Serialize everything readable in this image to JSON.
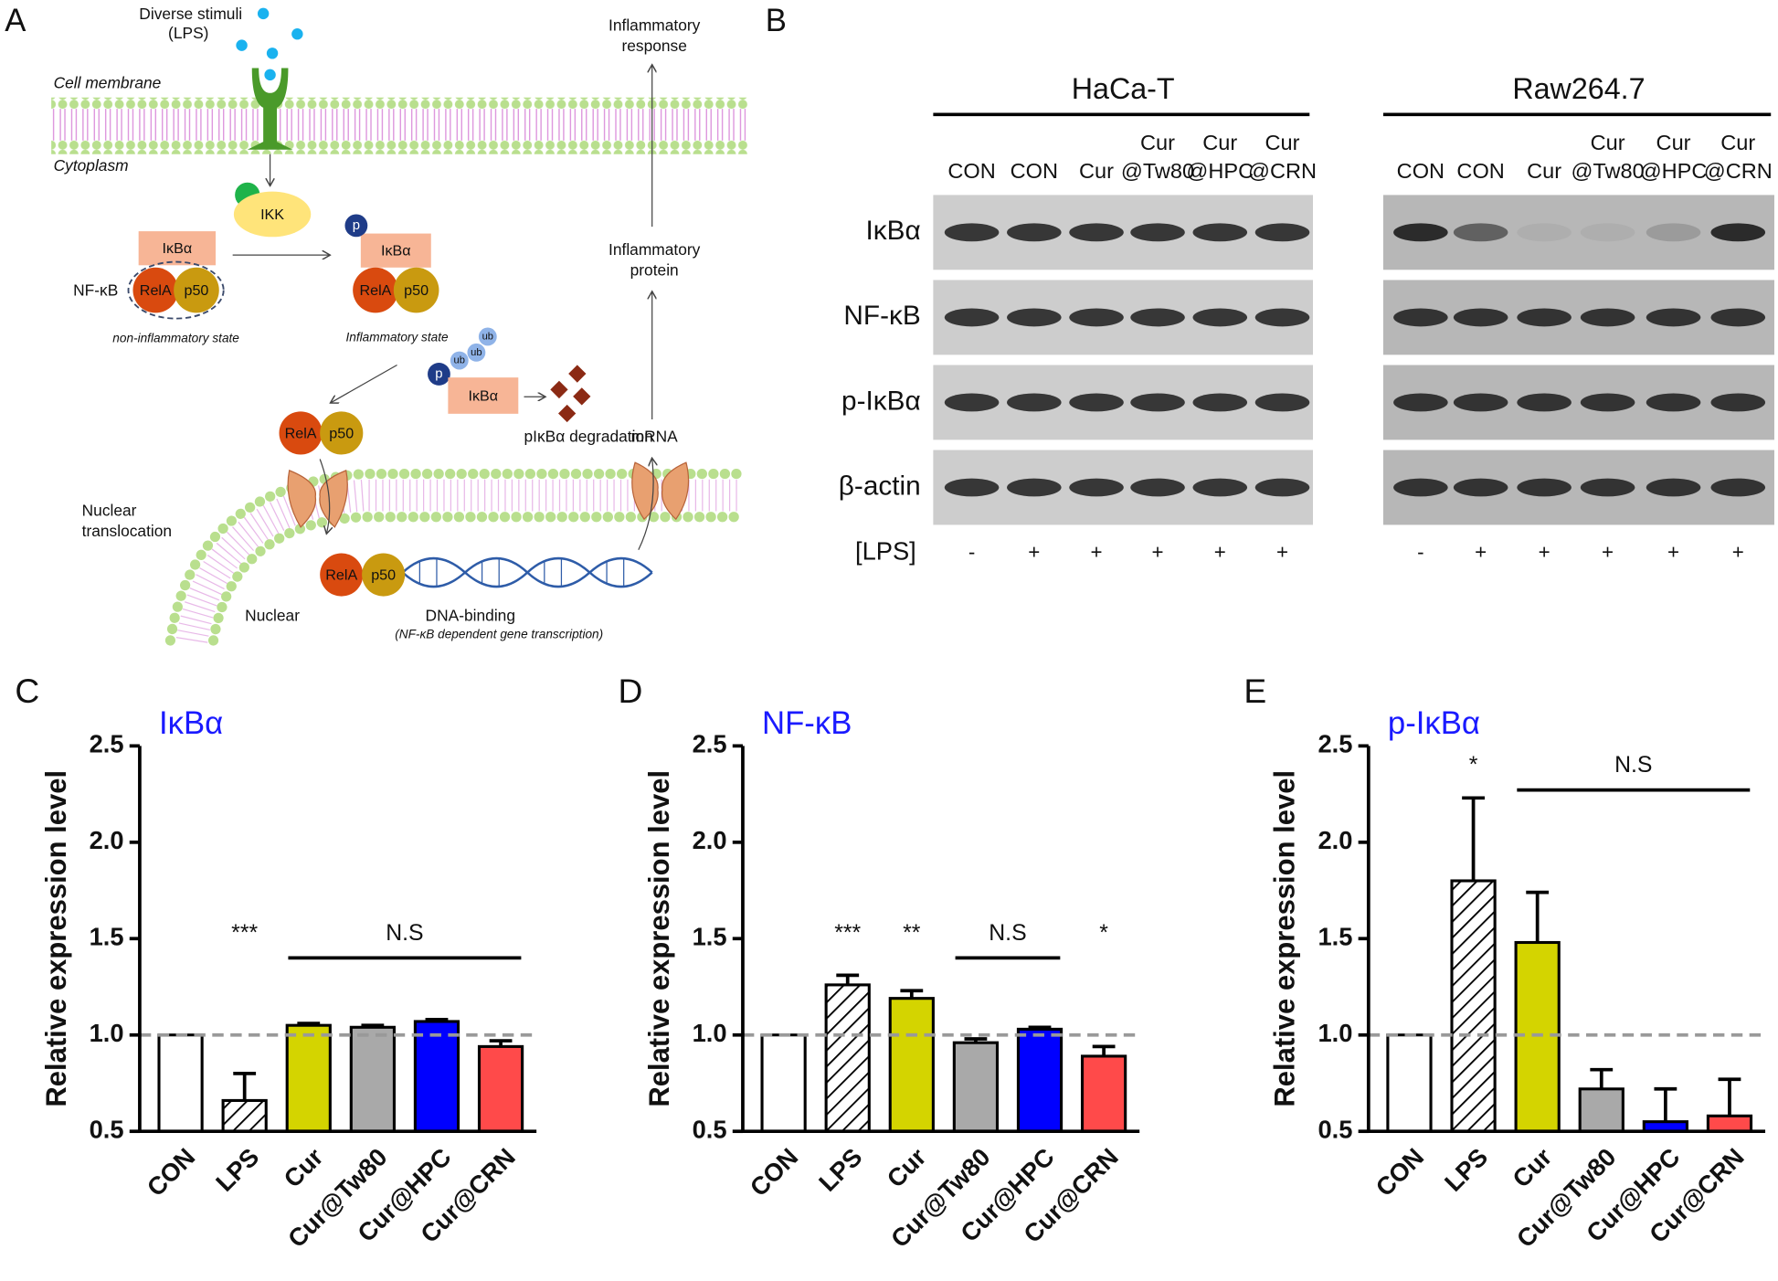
{
  "panel_labels": [
    "A",
    "B",
    "C",
    "D",
    "E"
  ],
  "panel_a": {
    "stimuli": [
      "Diverse stimuli",
      "(LPS)"
    ],
    "cell_membrane": "Cell membrane",
    "cytoplasm": "Cytoplasm",
    "ikk": "IKK",
    "ikba": "IκBα",
    "rela": "RelA",
    "p50": "p50",
    "nfkb": "NF-κB",
    "non_inflammatory": "non-inflammatory state",
    "inflammatory_state": "Inflammatory state",
    "p": "p",
    "ub": "ub",
    "degradation": "pIκBα degradation",
    "nuclear_translocation": [
      "Nuclear",
      "translocation"
    ],
    "nuclear": "Nuclear",
    "dna_binding": "DNA-binding",
    "transcription": "(NF-κB dependent gene transcription)",
    "mrna": "mRNA",
    "inflammatory_protein": [
      "Inflammatory",
      "protein"
    ],
    "inflammatory_response": [
      "Inflammatory",
      "response"
    ]
  },
  "panel_b": {
    "cell_lines": [
      "HaCa-T",
      "Raw264.7"
    ],
    "lanes": [
      [
        "CON"
      ],
      [
        "CON"
      ],
      [
        "Cur"
      ],
      [
        "Cur",
        "@Tw80"
      ],
      [
        "Cur",
        "@HPC"
      ],
      [
        "Cur",
        "@CRN"
      ]
    ],
    "proteins": [
      "IκBα",
      "NF-κB",
      "p-IκBα",
      "β-actin"
    ],
    "treatment_label": "[LPS]",
    "treatment": [
      "-",
      "+",
      "+",
      "+",
      "+",
      "+"
    ]
  },
  "chart_data": [
    {
      "type": "bar",
      "title": "IκBα",
      "title_color": "#1a1aff",
      "y_label": "Relative expression level",
      "categories": [
        "CON",
        "LPS",
        "Cur",
        "Cur@Tw80",
        "Cur@HPC",
        "Cur@CRN"
      ],
      "values": [
        1.0,
        0.66,
        1.05,
        1.04,
        1.07,
        0.94
      ],
      "errors": [
        null,
        0.14,
        0.01,
        0.01,
        0.01,
        0.03
      ],
      "colors": [
        "#ffffff",
        "#ffffff",
        "#d4d400",
        "#a9a9a9",
        "#0000ff",
        "#ff4a4a"
      ],
      "hatch": [
        false,
        true,
        false,
        false,
        false,
        false
      ],
      "ylim": [
        0.5,
        2.5
      ],
      "yticks": [
        0.5,
        {
          "value": 1,
          "label": "1.0"
        },
        1.5,
        {
          "value": 2,
          "label": "2.0"
        },
        2.5
      ],
      "reference_line": 1,
      "annotations": [
        {
          "text": "***",
          "from": 1,
          "to": 1
        },
        {
          "text": "N.S",
          "from": 2,
          "to": 5
        }
      ]
    },
    {
      "type": "bar",
      "title": "NF-κB",
      "title_color": "#1a1aff",
      "y_label": "Relative expression level",
      "categories": [
        "CON",
        "LPS",
        "Cur",
        "Cur@Tw80",
        "Cur@HPC",
        "Cur@CRN"
      ],
      "values": [
        1.0,
        1.26,
        1.19,
        0.96,
        1.03,
        0.89
      ],
      "errors": [
        null,
        0.05,
        0.04,
        0.02,
        0.01,
        0.05
      ],
      "colors": [
        "#ffffff",
        "#ffffff",
        "#d4d400",
        "#a9a9a9",
        "#0000ff",
        "#ff4a4a"
      ],
      "hatch": [
        false,
        true,
        false,
        false,
        false,
        false
      ],
      "ylim": [
        0.5,
        2.5
      ],
      "yticks": [
        0.5,
        {
          "value": 1,
          "label": "1.0"
        },
        1.5,
        {
          "value": 2,
          "label": "2.0"
        },
        2.5
      ],
      "reference_line": 1,
      "annotations": [
        {
          "text": "***",
          "from": 1,
          "to": 1
        },
        {
          "text": "**",
          "from": 2,
          "to": 2
        },
        {
          "text": "N.S",
          "from": 3,
          "to": 4
        },
        {
          "text": "*",
          "from": 5,
          "to": 5
        }
      ]
    },
    {
      "type": "bar",
      "title": "p-IκBα",
      "title_color": "#1a1aff",
      "y_label": "Relative expression level",
      "categories": [
        "CON",
        "LPS",
        "Cur",
        "Cur@Tw80",
        "Cur@HPC",
        "Cur@CRN"
      ],
      "values": [
        1.0,
        1.8,
        1.48,
        0.72,
        0.55,
        0.58
      ],
      "errors": [
        null,
        0.43,
        0.26,
        0.1,
        0.17,
        0.19
      ],
      "colors": [
        "#ffffff",
        "#ffffff",
        "#d4d400",
        "#a9a9a9",
        "#0000ff",
        "#ff4a4a"
      ],
      "hatch": [
        false,
        true,
        false,
        false,
        false,
        false
      ],
      "ylim": [
        0.5,
        2.5
      ],
      "yticks": [
        0.5,
        {
          "value": 1,
          "label": "1.0"
        },
        1.5,
        {
          "value": 2,
          "label": "2.0"
        },
        2.5
      ],
      "reference_line": 1,
      "annotations": [
        {
          "text": "*",
          "from": 1,
          "to": 1
        },
        {
          "text": "N.S",
          "from": 2,
          "to": 5
        }
      ]
    }
  ]
}
